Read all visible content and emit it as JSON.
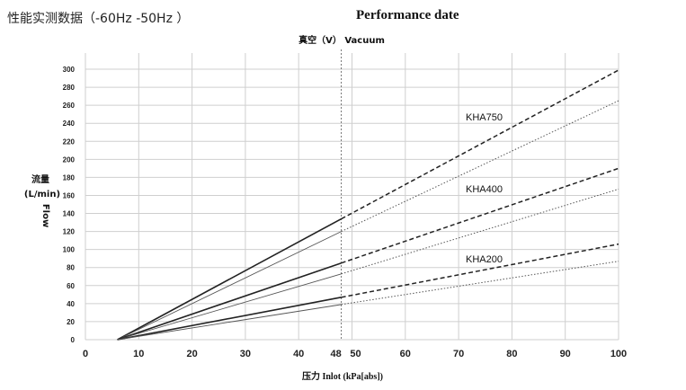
{
  "header": {
    "left_title": "性能实测数据（-60Hz -50Hz ）",
    "right_title": "Performance date"
  },
  "chart_data": {
    "type": "line",
    "title": "Performance date",
    "top_label": "真空（V） Vacuum",
    "ylabel_cn": "流量",
    "ylabel_unit": "(L/min)",
    "ylabel_en": "Flow",
    "xlabel": "压力 Inlot (kPa[abs])",
    "xlim": [
      0,
      100
    ],
    "ylim": [
      0,
      300
    ],
    "x_ticks": [
      0,
      10,
      20,
      30,
      40,
      48,
      50,
      60,
      70,
      80,
      90,
      100
    ],
    "y_ticks": [
      0,
      20,
      40,
      60,
      80,
      100,
      120,
      140,
      160,
      180,
      200,
      220,
      240,
      260,
      280,
      300
    ],
    "reference_x": 48,
    "grid": true,
    "series": [
      {
        "name": "KHA750",
        "color": "#222222",
        "points_upper": [
          [
            6,
            0
          ],
          [
            48,
            134
          ],
          [
            100,
            299
          ]
        ],
        "points_lower": [
          [
            6,
            0
          ],
          [
            48,
            120
          ],
          [
            100,
            265
          ]
        ]
      },
      {
        "name": "KHA400",
        "color": "#222222",
        "points_upper": [
          [
            6,
            0
          ],
          [
            48,
            85
          ],
          [
            100,
            190
          ]
        ],
        "points_lower": [
          [
            6,
            0
          ],
          [
            48,
            73
          ],
          [
            100,
            167
          ]
        ]
      },
      {
        "name": "KHA200",
        "color": "#222222",
        "points_upper": [
          [
            6,
            0
          ],
          [
            48,
            47
          ],
          [
            100,
            106
          ]
        ],
        "points_lower": [
          [
            6,
            0
          ],
          [
            48,
            39
          ],
          [
            100,
            87
          ]
        ]
      }
    ]
  }
}
